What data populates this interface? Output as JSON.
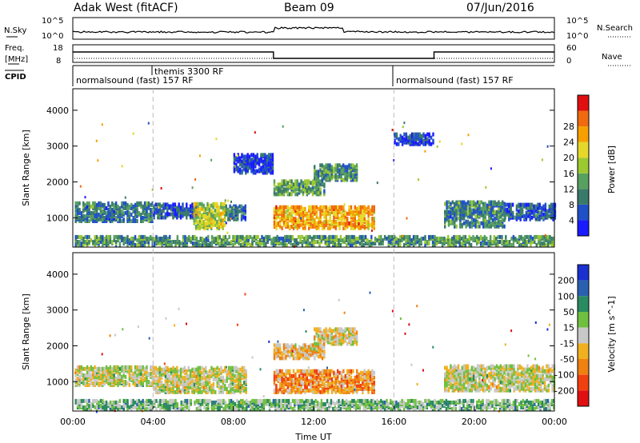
{
  "header": {
    "station": "Adak West (fitACF)",
    "beam": "Beam 09",
    "date": "07/Jun/2016"
  },
  "nsky_panel": {
    "left_label": "N.Sky",
    "right_label": "N.Search",
    "ticks_left": [
      "10^5",
      "10^0"
    ],
    "ticks_right": [
      "10^5",
      "10^0"
    ]
  },
  "freq_panel": {
    "left_label_1": "Freq.",
    "left_label_2": "[MHz]",
    "right_label": "Nave",
    "ticks_left": [
      "18",
      "8"
    ],
    "ticks_right": [
      "60",
      "0"
    ]
  },
  "cpid": {
    "label": "CPID",
    "segments": [
      {
        "name": "normalsound (fast) 157 RF",
        "start_hour": 0
      },
      {
        "name": "themis 3300 RF",
        "start_hour": 4
      },
      {
        "name": "normalsound (fast) 157 RF",
        "start_hour": 16
      }
    ]
  },
  "chart_data": [
    {
      "type": "heatmap",
      "quantity": "power",
      "ylabel": "Slant Range [km]",
      "ylim": [
        180,
        4600
      ],
      "yticks": [
        "1000",
        "2000",
        "3000",
        "4000"
      ],
      "colorbar": {
        "label": "Power [dB]",
        "ticks": [
          "4",
          "8",
          "12",
          "16",
          "20",
          "24",
          "28"
        ],
        "colors": [
          "#1a1aff",
          "#2050c8",
          "#3a7a6a",
          "#58a060",
          "#9cc830",
          "#e6d82a",
          "#f6a000",
          "#f06a10",
          "#e01010"
        ]
      },
      "regions": [
        {
          "t0": 0.1,
          "t1": 4.0,
          "r0": 850,
          "r1": 1380,
          "level": 0.28
        },
        {
          "t0": 4.0,
          "t1": 6.2,
          "r0": 950,
          "r1": 1350,
          "level": 0.18
        },
        {
          "t0": 6.0,
          "t1": 7.6,
          "r0": 650,
          "r1": 1350,
          "level": 0.55
        },
        {
          "t0": 7.6,
          "t1": 8.6,
          "r0": 900,
          "r1": 1300,
          "level": 0.25
        },
        {
          "t0": 10.0,
          "t1": 15.0,
          "r0": 650,
          "r1": 1250,
          "level": 0.72
        },
        {
          "t0": 10.0,
          "t1": 12.5,
          "r0": 1600,
          "r1": 2000,
          "level": 0.38
        },
        {
          "t0": 12.0,
          "t1": 14.2,
          "r0": 2000,
          "r1": 2450,
          "level": 0.32
        },
        {
          "t0": 8.0,
          "t1": 10.0,
          "r0": 2200,
          "r1": 2700,
          "level": 0.12
        },
        {
          "t0": 16.0,
          "t1": 18.0,
          "r0": 3000,
          "r1": 3300,
          "level": 0.15
        },
        {
          "t0": 18.5,
          "t1": 21.5,
          "r0": 700,
          "r1": 1400,
          "level": 0.3
        },
        {
          "t0": 21.5,
          "t1": 24.0,
          "r0": 900,
          "r1": 1350,
          "level": 0.2
        },
        {
          "t0": 0.1,
          "t1": 24.0,
          "r0": 180,
          "r1": 420,
          "level": 0.35
        }
      ]
    },
    {
      "type": "heatmap",
      "quantity": "velocity",
      "ylabel": "Slant Range [km]",
      "xlabel": "Time UT",
      "ylim": [
        180,
        4600
      ],
      "xlim": [
        0,
        24
      ],
      "yticks": [
        "1000",
        "2000",
        "3000",
        "4000"
      ],
      "xticks": [
        "00:00",
        "04:00",
        "08:00",
        "12:00",
        "16:00",
        "20:00",
        "00:00"
      ],
      "colorbar": {
        "label": "Velocity [m s^-1]",
        "ticks": [
          "200",
          "100",
          "50",
          "15",
          "-15",
          "-50",
          "-100",
          "-200"
        ],
        "colors": [
          "#1a30d0",
          "#2a60b0",
          "#2a8a60",
          "#70c040",
          "#c8c8c8",
          "#f0b020",
          "#f08010",
          "#f04010",
          "#e01010"
        ]
      },
      "regions": [
        {
          "t0": 0.1,
          "t1": 4.0,
          "r0": 850,
          "r1": 1380,
          "level": 0.5
        },
        {
          "t0": 4.0,
          "t1": 8.6,
          "r0": 650,
          "r1": 1350,
          "level": 0.5
        },
        {
          "t0": 10.0,
          "t1": 15.0,
          "r0": 650,
          "r1": 1250,
          "level": 0.68
        },
        {
          "t0": 10.0,
          "t1": 12.5,
          "r0": 1600,
          "r1": 2000,
          "level": 0.6
        },
        {
          "t0": 12.0,
          "t1": 14.2,
          "r0": 2000,
          "r1": 2450,
          "level": 0.52
        },
        {
          "t0": 18.5,
          "t1": 24.0,
          "r0": 700,
          "r1": 1400,
          "level": 0.5
        },
        {
          "t0": 0.1,
          "t1": 24.0,
          "r0": 180,
          "r1": 450,
          "level": 0.38
        }
      ]
    }
  ]
}
